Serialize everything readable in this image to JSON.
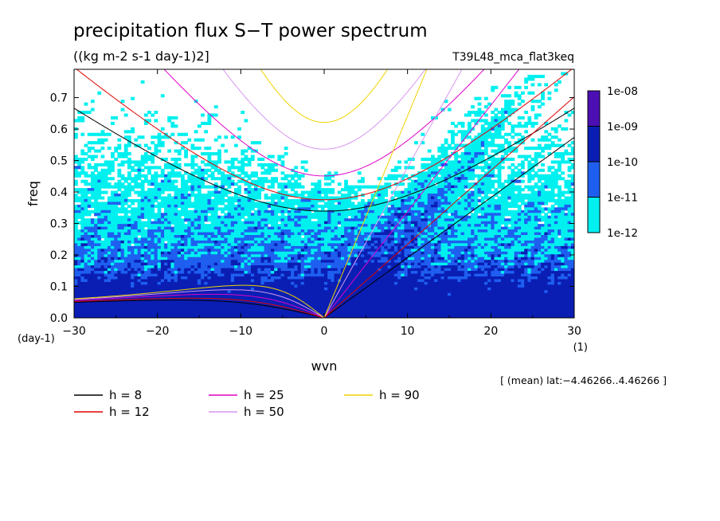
{
  "chart_data": {
    "type": "heatmap",
    "title": "precipitation flux S−T power spectrum",
    "subtitle": "((kg m-2 s-1 day-1)2]",
    "run_label": "T39L48_mca_flat3keq",
    "xlabel": "wvn",
    "xunit": "(1)",
    "ylabel": "freq",
    "yunit": "(day-1)",
    "xlim": [
      -30,
      30
    ],
    "ylim": [
      0,
      0.79
    ],
    "xticks": [
      "−30",
      "−20",
      "−10",
      "0",
      "10",
      "20",
      "30"
    ],
    "xtick_values": [
      -30,
      -20,
      -10,
      0,
      10,
      20,
      30
    ],
    "yticks": [
      "0.0",
      "0.1",
      "0.2",
      "0.3",
      "0.4",
      "0.5",
      "0.6",
      "0.7"
    ],
    "ytick_values": [
      0,
      0.1,
      0.2,
      0.3,
      0.4,
      0.5,
      0.6,
      0.7
    ],
    "colorbar": {
      "labels": [
        "1e-08",
        "1e-09",
        "1e-10",
        "1e-11",
        "1e-12"
      ],
      "colors": [
        "#4b0fb4",
        "#0a1eb4",
        "#1e5ff0",
        "#00f0f0"
      ]
    },
    "field_colors": {
      "lowest": "#ffffff",
      "low": "#00f0f0",
      "mid": "#1e5ff0",
      "high": "#0a1eb4"
    },
    "dispersion_curves": [
      {
        "name": "h =  8",
        "h": 8,
        "color": "#000000"
      },
      {
        "name": "h = 12",
        "h": 12,
        "color": "#e00000"
      },
      {
        "name": "h = 25",
        "h": 25,
        "color": "#e000c8"
      },
      {
        "name": "h = 50",
        "h": 50,
        "color": "#d896f0"
      },
      {
        "name": "h = 90",
        "h": 90,
        "color": "#f0d200"
      }
    ],
    "annotation": "[ (mean) lat:−4.46266..4.46266 ]"
  }
}
